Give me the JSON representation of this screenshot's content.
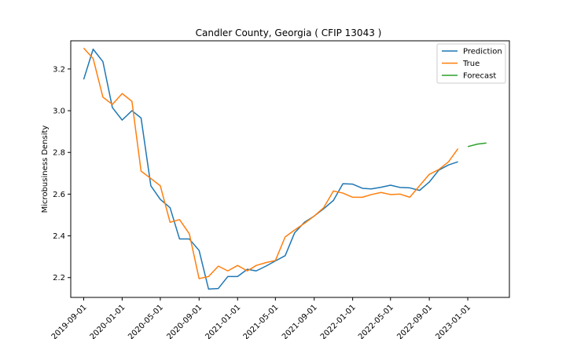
{
  "chart_data": {
    "type": "line",
    "title": "Candler County, Georgia ( CFIP 13043 )",
    "xlabel": "",
    "ylabel": "Microbusiness Density",
    "ylim": [
      2.105,
      3.335
    ],
    "xlim": [
      "2019-07-22",
      "2023-05-13"
    ],
    "grid": false,
    "legend_position": "top-right",
    "x_ticks": [
      "2019-09-01",
      "2020-01-01",
      "2020-05-01",
      "2020-09-01",
      "2021-01-01",
      "2021-05-01",
      "2021-09-01",
      "2022-01-01",
      "2022-05-01",
      "2022-09-01",
      "2023-01-01"
    ],
    "y_ticks": [
      2.2,
      2.4,
      2.6,
      2.8,
      3.0,
      3.2
    ],
    "y_tick_labels": [
      "2.2",
      "2.4",
      "2.6",
      "2.8",
      "3.0",
      "3.2"
    ],
    "colors": {
      "Prediction": "#1f77b4",
      "True": "#ff7f0e",
      "Forecast": "#2ca02c"
    },
    "series": [
      {
        "name": "Prediction",
        "x": [
          "2019-09-01",
          "2019-10-01",
          "2019-11-01",
          "2019-12-01",
          "2020-01-01",
          "2020-02-01",
          "2020-03-01",
          "2020-04-01",
          "2020-05-01",
          "2020-06-01",
          "2020-07-01",
          "2020-08-01",
          "2020-09-01",
          "2020-10-01",
          "2020-11-01",
          "2020-12-01",
          "2021-01-01",
          "2021-02-01",
          "2021-03-01",
          "2021-04-01",
          "2021-05-01",
          "2021-06-01",
          "2021-07-01",
          "2021-08-01",
          "2021-09-01",
          "2021-10-01",
          "2021-11-01",
          "2021-12-01",
          "2022-01-01",
          "2022-02-01",
          "2022-03-01",
          "2022-04-01",
          "2022-05-01",
          "2022-06-01",
          "2022-07-01",
          "2022-08-01",
          "2022-09-01",
          "2022-10-01",
          "2022-11-01",
          "2022-12-01"
        ],
        "values": [
          3.15,
          3.295,
          3.235,
          3.015,
          2.955,
          3.0,
          2.965,
          2.64,
          2.575,
          2.535,
          2.385,
          2.385,
          2.33,
          2.145,
          2.148,
          2.205,
          2.205,
          2.24,
          2.232,
          2.255,
          2.28,
          2.305,
          2.415,
          2.465,
          2.495,
          2.53,
          2.57,
          2.65,
          2.648,
          2.628,
          2.625,
          2.633,
          2.643,
          2.632,
          2.63,
          2.618,
          2.658,
          2.715,
          2.74,
          2.755
        ]
      },
      {
        "name": "True",
        "x": [
          "2019-09-01",
          "2019-10-01",
          "2019-11-01",
          "2019-12-01",
          "2020-01-01",
          "2020-02-01",
          "2020-03-01",
          "2020-04-01",
          "2020-05-01",
          "2020-06-01",
          "2020-07-01",
          "2020-08-01",
          "2020-09-01",
          "2020-10-01",
          "2020-11-01",
          "2020-12-01",
          "2021-01-01",
          "2021-02-01",
          "2021-03-01",
          "2021-04-01",
          "2021-05-01",
          "2021-06-01",
          "2021-07-01",
          "2021-08-01",
          "2021-09-01",
          "2021-10-01",
          "2021-11-01",
          "2021-12-01",
          "2022-01-01",
          "2022-02-01",
          "2022-03-01",
          "2022-04-01",
          "2022-05-01",
          "2022-06-01",
          "2022-07-01",
          "2022-08-01",
          "2022-09-01",
          "2022-10-01",
          "2022-11-01",
          "2022-12-01"
        ],
        "values": [
          3.3,
          3.25,
          3.065,
          3.03,
          3.082,
          3.045,
          2.71,
          2.675,
          2.64,
          2.465,
          2.478,
          2.41,
          2.195,
          2.205,
          2.255,
          2.232,
          2.258,
          2.232,
          2.258,
          2.272,
          2.282,
          2.395,
          2.428,
          2.46,
          2.495,
          2.535,
          2.615,
          2.605,
          2.585,
          2.585,
          2.598,
          2.608,
          2.598,
          2.6,
          2.585,
          2.64,
          2.695,
          2.718,
          2.755,
          2.818
        ]
      },
      {
        "name": "Forecast",
        "x": [
          "2023-01-01",
          "2023-02-01",
          "2023-03-01"
        ],
        "values": [
          2.828,
          2.84,
          2.845
        ]
      }
    ]
  }
}
